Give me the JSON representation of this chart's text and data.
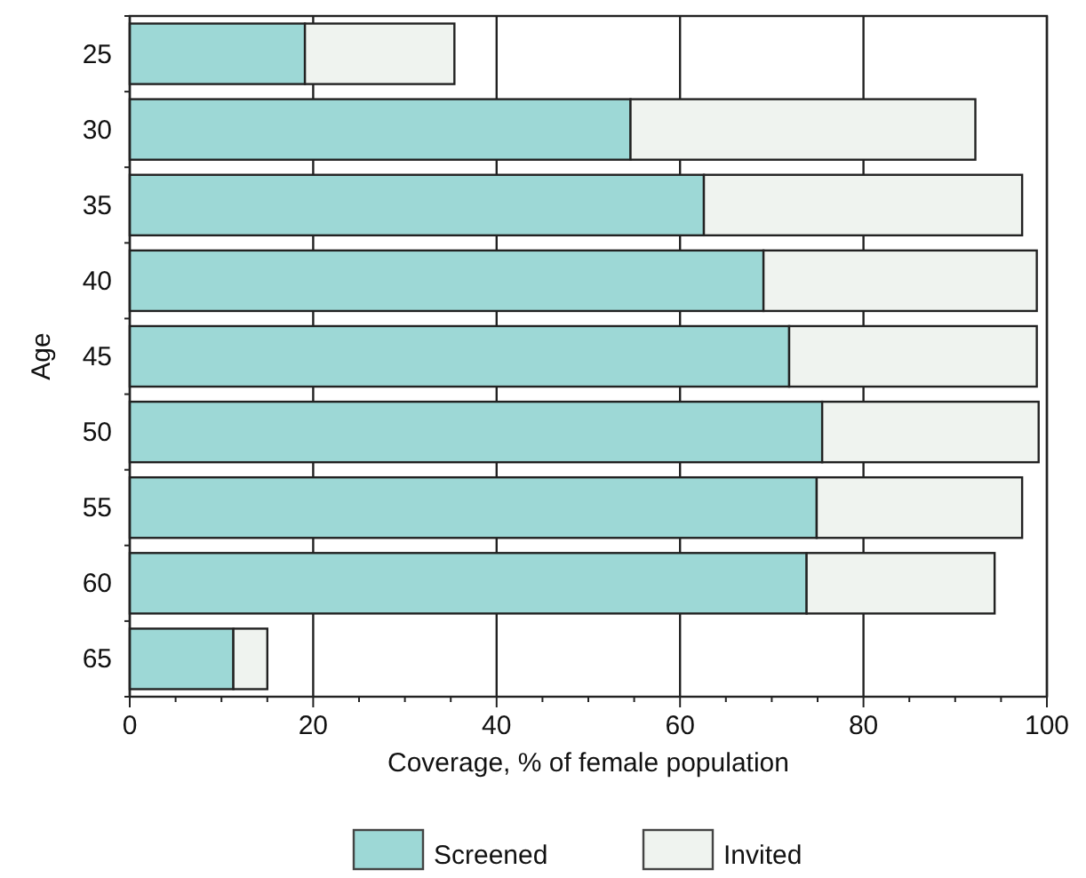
{
  "chart_data": {
    "type": "bar",
    "orientation": "horizontal",
    "stacked": true,
    "categories": [
      "25",
      "30",
      "35",
      "40",
      "45",
      "50",
      "55",
      "60",
      "65"
    ],
    "series": [
      {
        "name": "Screened",
        "color": "#9dd8d6",
        "values": [
          19.1,
          54.6,
          62.6,
          69.1,
          71.9,
          75.5,
          74.9,
          73.8,
          11.3
        ]
      },
      {
        "name": "Invited",
        "color": "#eff3ef",
        "values": [
          16.3,
          37.6,
          34.7,
          29.8,
          27.0,
          23.6,
          22.4,
          20.5,
          3.7
        ]
      }
    ],
    "xlim": [
      0,
      100
    ],
    "xticks": [
      0,
      {
        "value": 5,
        "label": null
      },
      {
        "value": 10,
        "label": null
      },
      {
        "value": 15,
        "label": null
      },
      20,
      {
        "value": 25,
        "label": null
      },
      {
        "value": 30,
        "label": null
      },
      {
        "value": 35,
        "label": null
      },
      40,
      {
        "value": 45,
        "label": null
      },
      {
        "value": 50,
        "label": null
      },
      {
        "value": 55,
        "label": null
      },
      60,
      {
        "value": 65,
        "label": null
      },
      {
        "value": 70,
        "label": null
      },
      {
        "value": 75,
        "label": null
      },
      80,
      {
        "value": 85,
        "label": null
      },
      {
        "value": 90,
        "label": null
      },
      {
        "value": 95,
        "label": null
      },
      100
    ],
    "xlabel": "Coverage, % of female population",
    "ylabel": "Age",
    "grid": "x",
    "legend": "bottom"
  }
}
